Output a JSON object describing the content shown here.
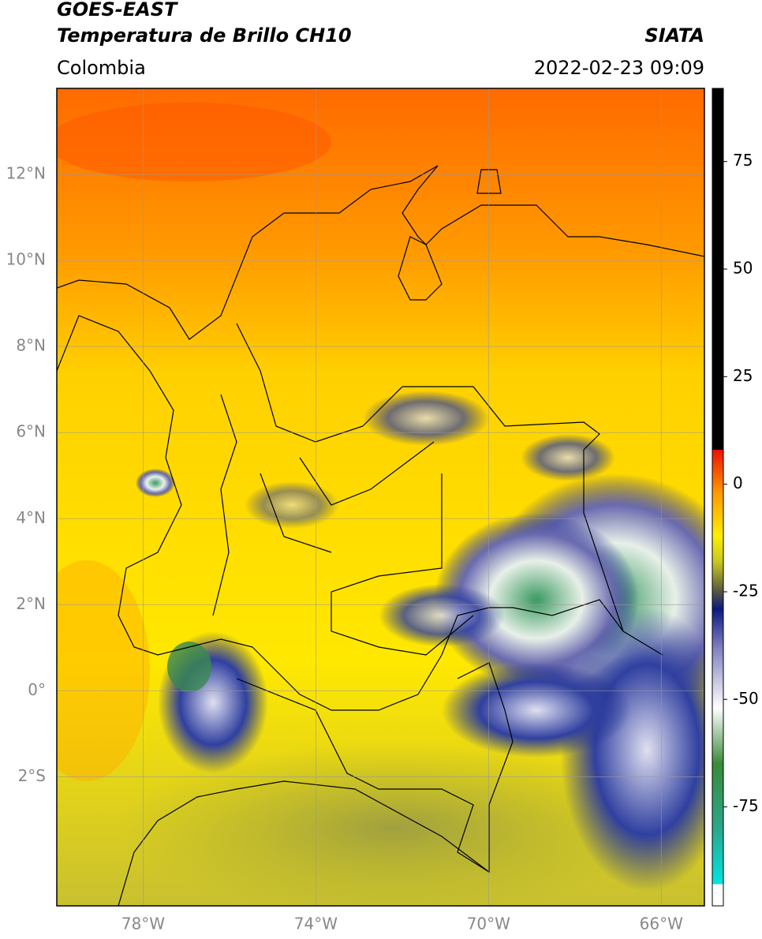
{
  "header": {
    "title": "GOES-EAST",
    "subtitle": "Temperatura de Brillo CH10",
    "source": "SIATA",
    "region": "Colombia",
    "timestamp": "2022-02-23 09:09"
  },
  "map": {
    "xlim": [
      -80,
      -65
    ],
    "ylim": [
      -5,
      14
    ],
    "xticks": [
      {
        "value": -78,
        "label": "78°W"
      },
      {
        "value": -74,
        "label": "74°W"
      },
      {
        "value": -70,
        "label": "70°W"
      },
      {
        "value": -66,
        "label": "66°W"
      }
    ],
    "yticks": [
      {
        "value": 12,
        "label": "12°N"
      },
      {
        "value": 10,
        "label": "10°N"
      },
      {
        "value": 8,
        "label": "8°N"
      },
      {
        "value": 6,
        "label": "6°N"
      },
      {
        "value": 4,
        "label": "4°N"
      },
      {
        "value": 2,
        "label": "2°N"
      },
      {
        "value": 0,
        "label": "0°"
      },
      {
        "value": -2,
        "label": "2°S"
      }
    ],
    "grid": true
  },
  "colorbar": {
    "lim": [
      -98,
      92
    ],
    "ticks": [
      75,
      50,
      25,
      0,
      -25,
      -50,
      -75
    ],
    "colormap": [
      {
        "value": -98,
        "color": "#ffffff"
      },
      {
        "value": -93,
        "color": "#ffffff"
      },
      {
        "value": -93,
        "color": "#00e5e5"
      },
      {
        "value": -80,
        "color": "#2aa88a"
      },
      {
        "value": -65,
        "color": "#3a8a3a"
      },
      {
        "value": -52,
        "color": "#ffffff"
      },
      {
        "value": -38,
        "color": "#8080c0"
      },
      {
        "value": -29,
        "color": "#0a1a80"
      },
      {
        "value": -25,
        "color": "#555540"
      },
      {
        "value": -18,
        "color": "#c8c820"
      },
      {
        "value": -12,
        "color": "#ffee00"
      },
      {
        "value": -2,
        "color": "#ff9900"
      },
      {
        "value": 8,
        "color": "#ee1100"
      },
      {
        "value": 8,
        "color": "#000000"
      },
      {
        "value": 92,
        "color": "#000000"
      }
    ]
  }
}
